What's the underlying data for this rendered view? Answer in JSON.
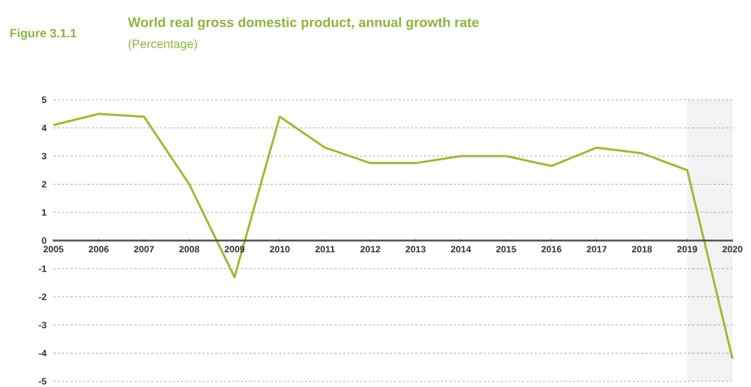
{
  "chart_data": {
    "type": "line",
    "title": "World real gross domestic product, annual growth rate",
    "subtitle": "(Percentage)",
    "annotations": [
      "Figure 3.1.1"
    ],
    "x": [
      2005,
      2006,
      2007,
      2008,
      2009,
      2010,
      2011,
      2012,
      2013,
      2014,
      2015,
      2016,
      2017,
      2018,
      2019,
      2020
    ],
    "series": [
      {
        "color": "#9bbb2c",
        "values": [
          4.1,
          4.5,
          4.4,
          2.0,
          -1.3,
          4.4,
          3.3,
          2.75,
          2.75,
          3.0,
          3.0,
          2.65,
          3.3,
          3.1,
          2.5,
          -4.2
        ]
      }
    ],
    "xlim": [
      2005,
      2020
    ],
    "xticks": [
      2005,
      2006,
      2007,
      2008,
      2009,
      2010,
      2011,
      2012,
      2013,
      2014,
      2015,
      2016,
      2017,
      2018,
      2019,
      2020
    ],
    "ylim": [
      -5,
      5
    ],
    "yticks": [
      -5,
      -4,
      -3,
      -2,
      -1,
      0,
      1,
      2,
      3,
      4,
      5
    ],
    "bands": [
      {
        "axis": "x",
        "from": 2019,
        "to": 2020,
        "color": "#f2f2f2"
      }
    ],
    "grid": "y",
    "marker": "none"
  }
}
